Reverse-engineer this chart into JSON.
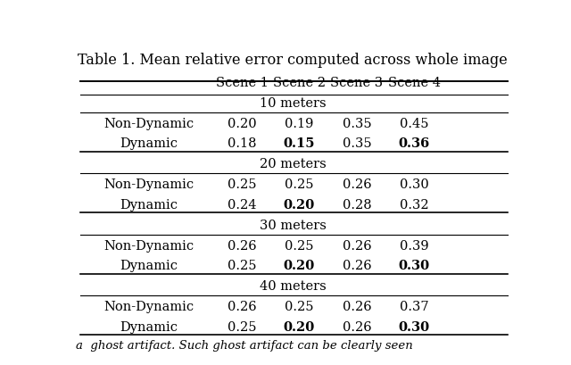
{
  "title": "Table 1. Mean relative error computed across whole image",
  "col_headers": [
    "Scene 1",
    "Scene 2",
    "Scene 3",
    "Scene 4"
  ],
  "sections": [
    {
      "section_label": "10 meters",
      "rows": [
        {
          "label": "Non-Dynamic",
          "values": [
            "0.20",
            "0.19",
            "0.35",
            "0.45"
          ],
          "bold": [
            false,
            false,
            false,
            false
          ]
        },
        {
          "label": "Dynamic",
          "values": [
            "0.18",
            "0.15",
            "0.35",
            "0.36"
          ],
          "bold": [
            false,
            true,
            false,
            true
          ]
        }
      ]
    },
    {
      "section_label": "20 meters",
      "rows": [
        {
          "label": "Non-Dynamic",
          "values": [
            "0.25",
            "0.25",
            "0.26",
            "0.30"
          ],
          "bold": [
            false,
            false,
            false,
            false
          ]
        },
        {
          "label": "Dynamic",
          "values": [
            "0.24",
            "0.20",
            "0.28",
            "0.32"
          ],
          "bold": [
            false,
            true,
            false,
            false
          ]
        }
      ]
    },
    {
      "section_label": "30 meters",
      "rows": [
        {
          "label": "Non-Dynamic",
          "values": [
            "0.26",
            "0.25",
            "0.26",
            "0.39"
          ],
          "bold": [
            false,
            false,
            false,
            false
          ]
        },
        {
          "label": "Dynamic",
          "values": [
            "0.25",
            "0.20",
            "0.26",
            "0.30"
          ],
          "bold": [
            false,
            true,
            false,
            true
          ]
        }
      ]
    },
    {
      "section_label": "40 meters",
      "rows": [
        {
          "label": "Non-Dynamic",
          "values": [
            "0.26",
            "0.25",
            "0.26",
            "0.37"
          ],
          "bold": [
            false,
            false,
            false,
            false
          ]
        },
        {
          "label": "Dynamic",
          "values": [
            "0.25",
            "0.20",
            "0.26",
            "0.30"
          ],
          "bold": [
            false,
            true,
            false,
            true
          ]
        }
      ]
    }
  ],
  "bg_color": "#ffffff",
  "text_color": "#000000",
  "font_size": 10.5,
  "title_font_size": 11.5,
  "header_font_size": 10.5,
  "caption": "a  ghost artifact. Such ghost artifact can be clearly seen"
}
